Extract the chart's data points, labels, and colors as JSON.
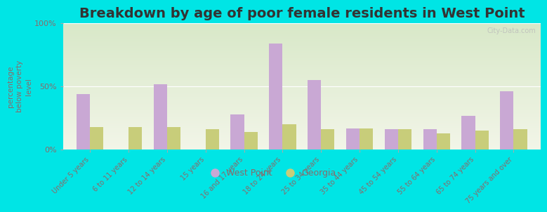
{
  "title": "Breakdown by age of poor female residents in West Point",
  "ylabel": "percentage\nbelow poverty\nlevel",
  "categories": [
    "Under 5 years",
    "6 to 11 years",
    "12 to 14 years",
    "15 years",
    "16 and 17 years",
    "18 to 24 years",
    "25 to 34 years",
    "35 to 44 years",
    "45 to 54 years",
    "55 to 64 years",
    "65 to 74 years",
    "75 years and over"
  ],
  "west_point": [
    44,
    0,
    52,
    0,
    28,
    84,
    55,
    17,
    16,
    16,
    27,
    46
  ],
  "georgia": [
    18,
    18,
    18,
    16,
    14,
    20,
    16,
    17,
    16,
    13,
    15,
    16
  ],
  "west_point_color": "#c9a8d4",
  "georgia_color": "#c8cd7a",
  "background_outer": "#00e5e5",
  "background_plot_top": "#d8e8c8",
  "background_plot_bottom": "#f2f5e8",
  "ylim": [
    0,
    100
  ],
  "yticks": [
    0,
    50,
    100
  ],
  "ytick_labels": [
    "0%",
    "50%",
    "100%"
  ],
  "bar_width": 0.35,
  "title_fontsize": 14,
  "tick_label_color": "#8a6a6a",
  "legend_labels": [
    "West Point",
    "Georgia"
  ]
}
